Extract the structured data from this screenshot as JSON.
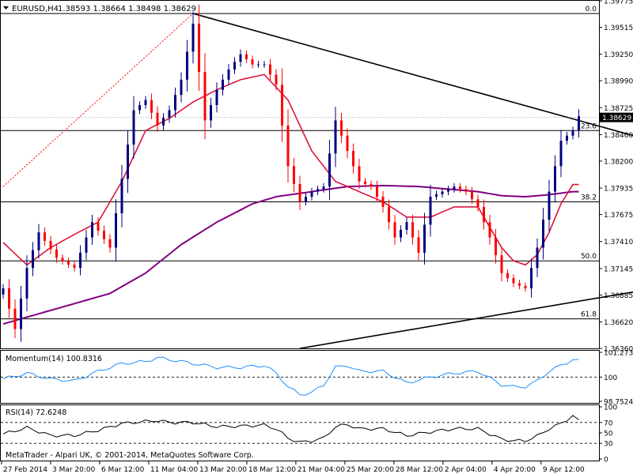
{
  "header": {
    "title": "EURUSD,H4",
    "ohlc": "1.38593 1.38664 1.38498 1.38629"
  },
  "footer": "MetaTrader - Alpari UK, © 2001-2014, MetaQuotes Software Corp.",
  "colors": {
    "background": "#ffffff",
    "candle_up": "#000080",
    "candle_down": "#ff0000",
    "ma_fast": "#dc143c",
    "ma_slow": "#800080",
    "momentum_line": "#1e90ff",
    "rsi_line": "#000000",
    "trendline": "#000000",
    "fib_line": "#000000"
  },
  "chart_data": [
    {
      "type": "candlestick",
      "name": "price",
      "ylim": [
        1.3636,
        1.39775
      ],
      "price_ticks": [
        "1.39775",
        "1.39515",
        "1.39250",
        "1.38990",
        "1.38725",
        "1.38460",
        "1.38200",
        "1.37935",
        "1.37675",
        "1.37410",
        "1.37145",
        "1.36885",
        "1.36620",
        "1.36360"
      ],
      "current_price": "1.38629",
      "x_labels": [
        "27 Feb 2014",
        "3 Mar 20:00",
        "6 Mar 12:00",
        "11 Mar 04:00",
        "13 Mar 20:00",
        "18 Mar 12:00",
        "21 Mar 04:00",
        "25 Mar 20:00",
        "28 Mar 12:00",
        "2 Apr 04:00",
        "4 Apr 20:00",
        "9 Apr 12:00"
      ],
      "fib_levels": [
        {
          "label": "0.0",
          "price": 1.3965
        },
        {
          "label": "23.6",
          "price": 1.385
        },
        {
          "label": "38.2",
          "price": 1.378
        },
        {
          "label": "50.0",
          "price": 1.3722
        },
        {
          "label": "61.8",
          "price": 1.3665
        }
      ],
      "trendlines": [
        {
          "from": [
            32,
            1.3965
          ],
          "to": [
            126,
            1.3813
          ]
        },
        {
          "from": [
            50,
            1.3636
          ],
          "to": [
            126,
            1.3711
          ]
        }
      ],
      "dotted_line": {
        "from": [
          0,
          1.3795
        ],
        "to": [
          32,
          1.3965
        ]
      },
      "anchors": [
        [
          0,
          1.3695
        ],
        [
          2,
          1.3655
        ],
        [
          4,
          1.3715
        ],
        [
          6,
          1.375
        ],
        [
          9,
          1.3725
        ],
        [
          12,
          1.3715
        ],
        [
          15,
          1.376
        ],
        [
          18,
          1.3735
        ],
        [
          22,
          1.387
        ],
        [
          24,
          1.388
        ],
        [
          26,
          1.3855
        ],
        [
          28,
          1.387
        ],
        [
          30,
          1.39
        ],
        [
          32,
          1.3955
        ],
        [
          34,
          1.386
        ],
        [
          36,
          1.389
        ],
        [
          38,
          1.391
        ],
        [
          40,
          1.3925
        ],
        [
          42,
          1.3915
        ],
        [
          44,
          1.3915
        ],
        [
          46,
          1.3895
        ],
        [
          48,
          1.3815
        ],
        [
          50,
          1.378
        ],
        [
          52,
          1.379
        ],
        [
          54,
          1.3795
        ],
        [
          56,
          1.386
        ],
        [
          58,
          1.383
        ],
        [
          60,
          1.38
        ],
        [
          62,
          1.3795
        ],
        [
          64,
          1.3775
        ],
        [
          66,
          1.3745
        ],
        [
          68,
          1.376
        ],
        [
          70,
          1.373
        ],
        [
          72,
          1.3785
        ],
        [
          74,
          1.379
        ],
        [
          76,
          1.3795
        ],
        [
          78,
          1.379
        ],
        [
          80,
          1.3775
        ],
        [
          82,
          1.3745
        ],
        [
          84,
          1.371
        ],
        [
          86,
          1.37
        ],
        [
          88,
          1.3695
        ],
        [
          90,
          1.3735
        ],
        [
          92,
          1.379
        ],
        [
          94,
          1.384
        ],
        [
          96,
          1.385
        ],
        [
          97,
          1.3864
        ]
      ],
      "ma_fast": [
        [
          0,
          1.374
        ],
        [
          4,
          1.3718
        ],
        [
          8,
          1.3735
        ],
        [
          12,
          1.3748
        ],
        [
          16,
          1.376
        ],
        [
          20,
          1.38
        ],
        [
          24,
          1.385
        ],
        [
          28,
          1.3862
        ],
        [
          32,
          1.3878
        ],
        [
          36,
          1.389
        ],
        [
          40,
          1.39
        ],
        [
          44,
          1.3905
        ],
        [
          48,
          1.388
        ],
        [
          52,
          1.383
        ],
        [
          56,
          1.38
        ],
        [
          60,
          1.379
        ],
        [
          64,
          1.378
        ],
        [
          68,
          1.3765
        ],
        [
          72,
          1.3765
        ],
        [
          76,
          1.3775
        ],
        [
          80,
          1.3775
        ],
        [
          84,
          1.3735
        ],
        [
          86,
          1.3722
        ],
        [
          88,
          1.3718
        ],
        [
          90,
          1.3728
        ],
        [
          92,
          1.375
        ],
        [
          94,
          1.3778
        ],
        [
          96,
          1.3797
        ]
      ],
      "ma_slow": [
        [
          0,
          1.366
        ],
        [
          6,
          1.367
        ],
        [
          12,
          1.368
        ],
        [
          18,
          1.369
        ],
        [
          24,
          1.371
        ],
        [
          30,
          1.3738
        ],
        [
          36,
          1.376
        ],
        [
          42,
          1.3778
        ],
        [
          46,
          1.3785
        ],
        [
          52,
          1.379
        ],
        [
          58,
          1.3795
        ],
        [
          64,
          1.3796
        ],
        [
          70,
          1.3795
        ],
        [
          76,
          1.3792
        ],
        [
          80,
          1.379
        ],
        [
          84,
          1.3786
        ],
        [
          88,
          1.3785
        ],
        [
          92,
          1.3787
        ],
        [
          96,
          1.379
        ]
      ]
    },
    {
      "type": "line",
      "name": "momentum",
      "label": "Momentum(14) 100.8316",
      "ylim": [
        98.7524,
        101.2733
      ],
      "y_ticks": [
        "101.2733",
        "100",
        "98.7524"
      ],
      "reference_level": 100,
      "anchors": [
        [
          0,
          99.9
        ],
        [
          4,
          100.2
        ],
        [
          8,
          99.9
        ],
        [
          12,
          99.8
        ],
        [
          16,
          100.3
        ],
        [
          20,
          100.7
        ],
        [
          24,
          100.8
        ],
        [
          26,
          101.0
        ],
        [
          28,
          100.9
        ],
        [
          32,
          100.7
        ],
        [
          36,
          100.5
        ],
        [
          40,
          100.5
        ],
        [
          44,
          100.6
        ],
        [
          46,
          100.2
        ],
        [
          48,
          99.5
        ],
        [
          50,
          99.1
        ],
        [
          52,
          99.2
        ],
        [
          54,
          99.6
        ],
        [
          56,
          100.5
        ],
        [
          58,
          100.6
        ],
        [
          60,
          100.3
        ],
        [
          64,
          100.3
        ],
        [
          68,
          99.7
        ],
        [
          72,
          100.0
        ],
        [
          76,
          100.2
        ],
        [
          80,
          100.3
        ],
        [
          84,
          99.6
        ],
        [
          86,
          99.5
        ],
        [
          88,
          99.5
        ],
        [
          90,
          99.8
        ],
        [
          92,
          100.3
        ],
        [
          94,
          100.6
        ],
        [
          96,
          100.9
        ],
        [
          97,
          100.83
        ]
      ]
    },
    {
      "type": "line",
      "name": "rsi",
      "label": "RSI(14) 72.6248",
      "ylim": [
        0,
        100
      ],
      "y_ticks": [
        "100",
        "70",
        "50",
        "30",
        "0"
      ],
      "levels": [
        70,
        30
      ],
      "anchors": [
        [
          0,
          48
        ],
        [
          4,
          60
        ],
        [
          8,
          45
        ],
        [
          12,
          45
        ],
        [
          16,
          55
        ],
        [
          20,
          68
        ],
        [
          24,
          72
        ],
        [
          26,
          74
        ],
        [
          28,
          70
        ],
        [
          32,
          70
        ],
        [
          36,
          62
        ],
        [
          40,
          63
        ],
        [
          44,
          65
        ],
        [
          46,
          58
        ],
        [
          48,
          40
        ],
        [
          50,
          32
        ],
        [
          52,
          35
        ],
        [
          54,
          40
        ],
        [
          56,
          62
        ],
        [
          58,
          66
        ],
        [
          60,
          58
        ],
        [
          64,
          58
        ],
        [
          68,
          45
        ],
        [
          72,
          52
        ],
        [
          76,
          58
        ],
        [
          80,
          58
        ],
        [
          84,
          38
        ],
        [
          86,
          35
        ],
        [
          88,
          35
        ],
        [
          90,
          44
        ],
        [
          92,
          58
        ],
        [
          94,
          68
        ],
        [
          96,
          83
        ],
        [
          97,
          72.6
        ]
      ]
    }
  ]
}
